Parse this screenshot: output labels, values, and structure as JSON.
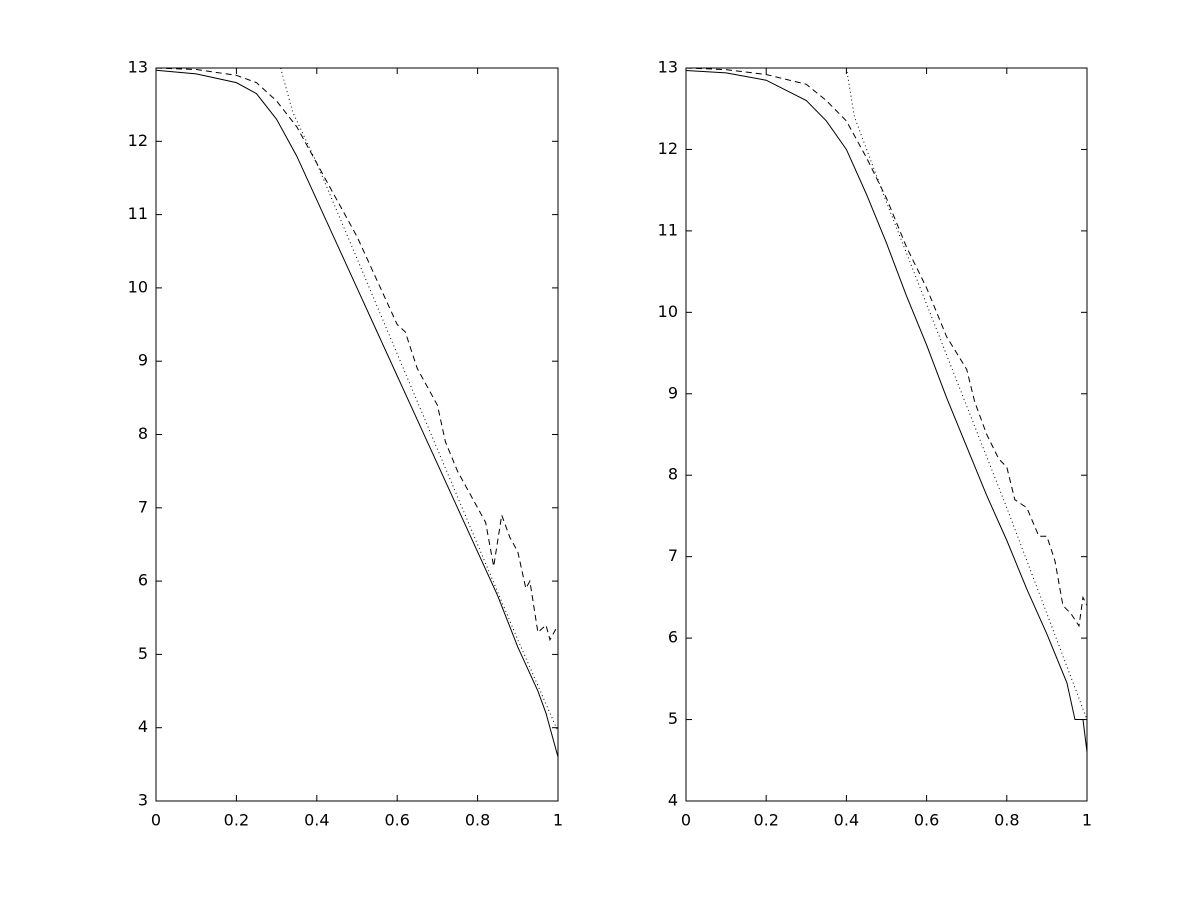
{
  "chart_data": [
    {
      "type": "line",
      "xlim": [
        0,
        1
      ],
      "ylim": [
        3,
        13
      ],
      "xticks": [
        0,
        0.2,
        0.4,
        0.6,
        0.8,
        1
      ],
      "yticks": [
        3,
        4,
        5,
        6,
        7,
        8,
        9,
        10,
        11,
        12,
        13
      ],
      "series": [
        {
          "color": "#000000",
          "dash": "solid",
          "x": [
            0,
            0.1,
            0.2,
            0.25,
            0.3,
            0.35,
            0.4,
            0.45,
            0.5,
            0.55,
            0.6,
            0.65,
            0.7,
            0.75,
            0.8,
            0.85,
            0.9,
            0.95,
            0.97,
            1
          ],
          "values": [
            12.97,
            12.92,
            12.8,
            12.65,
            12.3,
            11.8,
            11.2,
            10.6,
            10.0,
            9.4,
            8.8,
            8.2,
            7.6,
            7.0,
            6.4,
            5.8,
            5.1,
            4.5,
            4.2,
            3.6
          ]
        },
        {
          "color": "#000000",
          "dash": "dashed",
          "x": [
            0,
            0.1,
            0.2,
            0.25,
            0.3,
            0.35,
            0.4,
            0.45,
            0.5,
            0.55,
            0.6,
            0.62,
            0.65,
            0.7,
            0.72,
            0.75,
            0.78,
            0.8,
            0.82,
            0.84,
            0.86,
            0.88,
            0.9,
            0.92,
            0.93,
            0.95,
            0.97,
            0.98,
            1
          ],
          "values": [
            13,
            12.98,
            12.9,
            12.8,
            12.55,
            12.2,
            11.7,
            11.2,
            10.7,
            10.1,
            9.5,
            9.4,
            8.9,
            8.4,
            7.9,
            7.5,
            7.2,
            7.0,
            6.8,
            6.2,
            6.9,
            6.6,
            6.4,
            5.9,
            6.0,
            5.3,
            5.4,
            5.2,
            5.4
          ]
        },
        {
          "color": "#000000",
          "dash": "dotted",
          "x": [
            0.31,
            0.34,
            0.4,
            0.5,
            0.6,
            0.7,
            0.8,
            0.9,
            1
          ],
          "values": [
            13,
            12.4,
            11.7,
            10.4,
            9.1,
            7.8,
            6.5,
            5.2,
            3.95
          ]
        }
      ]
    },
    {
      "type": "line",
      "xlim": [
        0,
        1
      ],
      "ylim": [
        4,
        13
      ],
      "xticks": [
        0,
        0.2,
        0.4,
        0.6,
        0.8,
        1
      ],
      "yticks": [
        4,
        5,
        6,
        7,
        8,
        9,
        10,
        11,
        12,
        13
      ],
      "series": [
        {
          "color": "#000000",
          "dash": "solid",
          "x": [
            0,
            0.1,
            0.2,
            0.3,
            0.35,
            0.4,
            0.45,
            0.5,
            0.55,
            0.6,
            0.65,
            0.7,
            0.75,
            0.8,
            0.85,
            0.9,
            0.95,
            0.97,
            0.99,
            1
          ],
          "values": [
            12.97,
            12.94,
            12.85,
            12.6,
            12.35,
            12.0,
            11.45,
            10.85,
            10.2,
            9.6,
            8.95,
            8.35,
            7.75,
            7.2,
            6.6,
            6.05,
            5.45,
            5.0,
            5.0,
            4.6
          ]
        },
        {
          "color": "#000000",
          "dash": "dashed",
          "x": [
            0,
            0.1,
            0.2,
            0.3,
            0.35,
            0.4,
            0.45,
            0.5,
            0.55,
            0.6,
            0.65,
            0.7,
            0.72,
            0.75,
            0.78,
            0.8,
            0.82,
            0.85,
            0.88,
            0.9,
            0.92,
            0.94,
            0.96,
            0.98,
            0.99,
            1
          ],
          "values": [
            13,
            12.98,
            12.92,
            12.8,
            12.6,
            12.35,
            11.9,
            11.4,
            10.8,
            10.3,
            9.7,
            9.3,
            8.9,
            8.5,
            8.2,
            8.1,
            7.7,
            7.6,
            7.25,
            7.25,
            6.95,
            6.4,
            6.3,
            6.15,
            6.5,
            6.4
          ]
        },
        {
          "color": "#000000",
          "dash": "dotted",
          "x": [
            0.4,
            0.42,
            0.5,
            0.6,
            0.7,
            0.8,
            0.9,
            1
          ],
          "values": [
            13,
            12.4,
            11.35,
            10.1,
            8.85,
            7.6,
            6.3,
            5.0
          ]
        }
      ]
    }
  ]
}
